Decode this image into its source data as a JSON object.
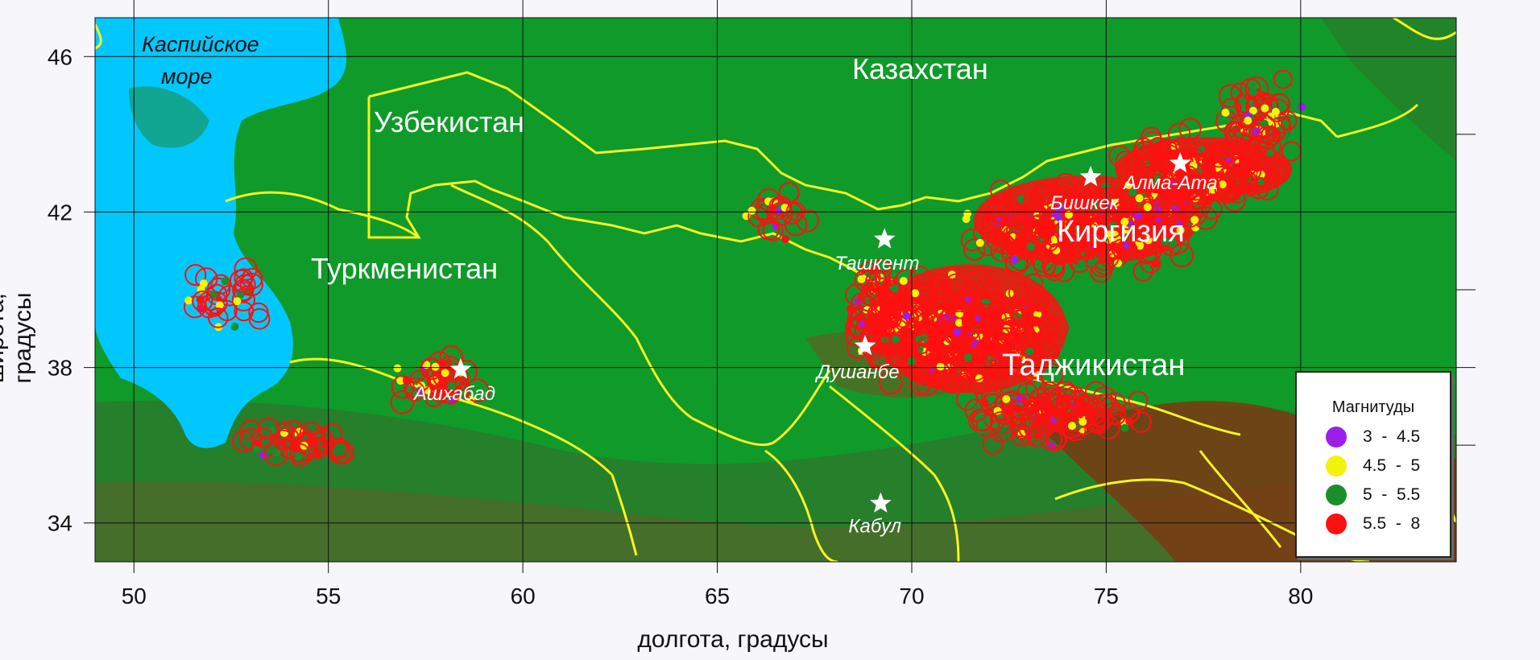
{
  "axes": {
    "xlabel": "долгота, градусы",
    "ylabel": "широта, градусы",
    "xlim": [
      49,
      84
    ],
    "ylim": [
      33,
      47
    ],
    "xticks": [
      "50",
      "55",
      "60",
      "65",
      "70",
      "75",
      "80"
    ],
    "yticks": [
      "34",
      "38",
      "42",
      "46"
    ]
  },
  "labels": {
    "caspian_line1": "Каспийское",
    "caspian_line2": "море",
    "kazakhstan": "Казахстан",
    "uzbekistan": "Узбекистан",
    "turkmenistan": "Туркменистан",
    "kyrgyzstan": "Киргизия",
    "tajikistan": "Таджикистан"
  },
  "cities": [
    {
      "name": "Бишкек",
      "lon": 74.6,
      "lat": 42.9
    },
    {
      "name": "Алма-Ата",
      "lon": 76.9,
      "lat": 43.25
    },
    {
      "name": "Ташкент",
      "lon": 69.3,
      "lat": 41.3
    },
    {
      "name": "Душанбе",
      "lon": 68.8,
      "lat": 38.55
    },
    {
      "name": "Ашхабад",
      "lon": 58.4,
      "lat": 37.95
    },
    {
      "name": "Кабул",
      "lon": 69.2,
      "lat": 34.5
    }
  ],
  "legend": {
    "title": "Магнитуды",
    "items": [
      {
        "label": "3  -  4.5",
        "color": "#9b1fe8"
      },
      {
        "label": "4.5  -  5",
        "color": "#f2f20a"
      },
      {
        "label": "5  -  5.5",
        "color": "#1a8f2a"
      },
      {
        "label": "5.5  -  8",
        "color": "#ff1010"
      }
    ]
  },
  "colors": {
    "sea": "#00c8ff",
    "land": "#139a2a",
    "border": "#f5f520",
    "quake": "#ff1010"
  }
}
